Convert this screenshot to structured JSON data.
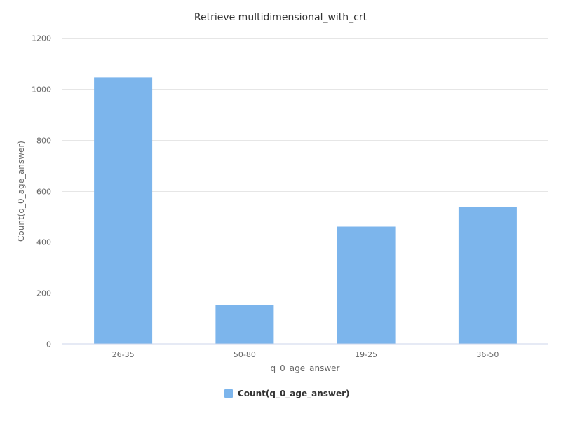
{
  "chart_data": {
    "type": "bar",
    "title": "Retrieve multidimensional_with_crt",
    "xlabel": "q_0_age_answer",
    "ylabel": "Count(q_0_age_answer)",
    "categories": [
      "26-35",
      "50-80",
      "19-25",
      "36-50"
    ],
    "series": [
      {
        "name": "Count(q_0_age_answer)",
        "values": [
          1045,
          152,
          460,
          537
        ],
        "color": "#7cb5ec"
      }
    ],
    "ylim": [
      0,
      1200
    ],
    "yticks": [
      0,
      200,
      400,
      600,
      800,
      1000,
      1200
    ],
    "grid": true,
    "legend_position": "bottom-center"
  }
}
